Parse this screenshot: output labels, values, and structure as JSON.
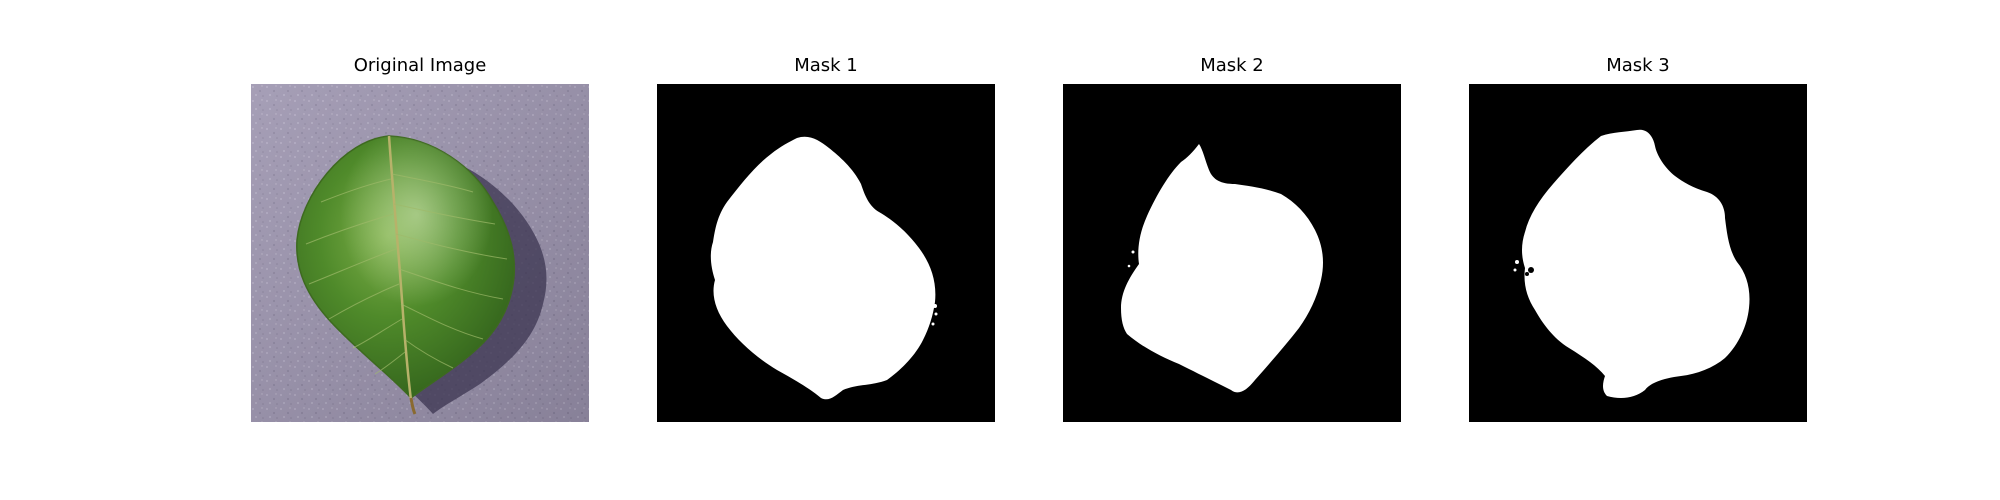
{
  "panels": [
    {
      "title": "Original Image",
      "kind": "photo",
      "subject": "leaf-on-textured-purple-surface"
    },
    {
      "title": "Mask 1",
      "kind": "binary-mask",
      "foreground": "#ffffff",
      "background": "#000000"
    },
    {
      "title": "Mask 2",
      "kind": "binary-mask",
      "foreground": "#ffffff",
      "background": "#000000"
    },
    {
      "title": "Mask 3",
      "kind": "binary-mask",
      "foreground": "#ffffff",
      "background": "#000000"
    }
  ],
  "colors": {
    "page_background": "#ffffff",
    "photo_background": "#9a92ad",
    "leaf_dark": "#2f5e1a",
    "leaf_mid": "#4f8a2a",
    "leaf_light": "#7fb04a",
    "leaf_vein": "#b7b26a",
    "mask_foreground": "#ffffff",
    "mask_background": "#000000",
    "title_text": "#000000"
  }
}
